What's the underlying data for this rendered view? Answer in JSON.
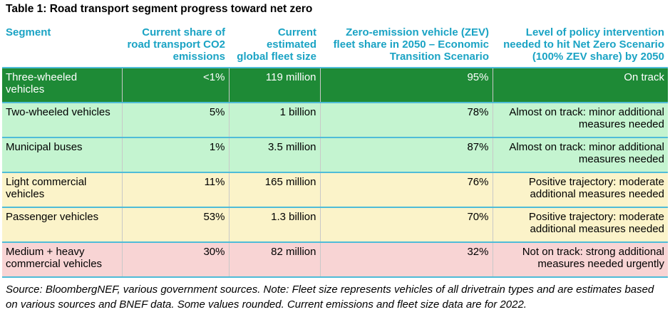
{
  "title": "Table 1: Road transport segment progress toward net zero",
  "table": {
    "headers": [
      "Segment",
      "Current share of road transport CO2 emissions",
      "Current estimated global fleet size",
      "Zero-emission vehicle (ZEV) fleet share in 2050 – Economic Transition Scenario",
      "Level of policy intervention needed to hit Net Zero Scenario (100% ZEV share) by 2050"
    ],
    "rows": [
      {
        "status": "dark-green",
        "cells": [
          "Three-wheeled vehicles",
          "<1%",
          "119 million",
          "95%",
          "On track"
        ]
      },
      {
        "status": "light-green",
        "cells": [
          "Two-wheeled vehicles",
          "5%",
          "1 billion",
          "78%",
          "Almost on track: minor additional measures needed"
        ]
      },
      {
        "status": "light-green",
        "cells": [
          "Municipal buses",
          "1%",
          "3.5 million",
          "87%",
          "Almost on track: minor additional measures needed"
        ]
      },
      {
        "status": "light-yellow",
        "cells": [
          "Light commercial vehicles",
          "11%",
          "165 million",
          "76%",
          "Positive trajectory: moderate additional measures needed"
        ]
      },
      {
        "status": "light-yellow",
        "cells": [
          "Passenger vehicles",
          "53%",
          "1.3 billion",
          "70%",
          "Positive trajectory: moderate additional measures needed"
        ]
      },
      {
        "status": "light-red",
        "cells": [
          "Medium + heavy commercial vehicles",
          "30%",
          "82 million",
          "32%",
          "Not on track: strong additional measures needed urgently"
        ]
      }
    ]
  },
  "status_colors": {
    "dark-green": "#1e8a36",
    "light-green": "#c4f4d0",
    "light-yellow": "#fbf3c9",
    "light-red": "#f8d4d4"
  },
  "header_color": "#1aa3c4",
  "source": "Source: BloombergNEF, various government sources. Note: Fleet size represents vehicles of all drivetrain types and are estimates based on various sources and BNEF data. Some values rounded. Current emissions and fleet size data are for 2022."
}
